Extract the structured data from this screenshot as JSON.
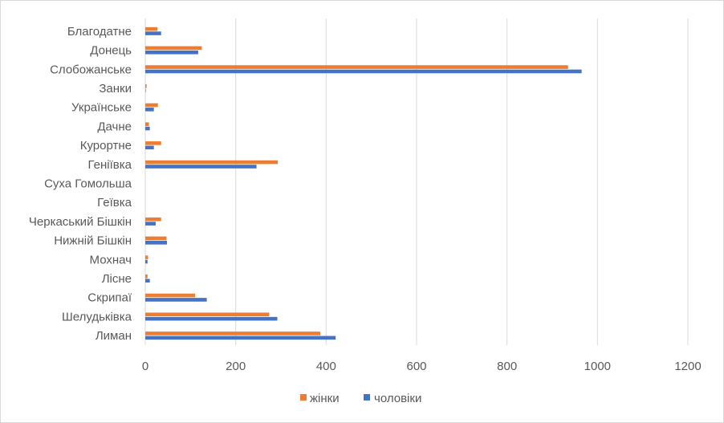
{
  "chart_data": {
    "type": "bar",
    "orientation": "horizontal",
    "categories": [
      "Лиман",
      "Шелудьківка",
      "Скрипаї",
      "Лісне",
      "Мохнач",
      "Нижній Бішкін",
      "Черкаський Бішкін",
      "Геївка",
      "Суха Гомольша",
      "Геніївка",
      "Курортне",
      "Дачне",
      "Українське",
      "Занки",
      "Слобожанське",
      "Донець",
      "Благодатне"
    ],
    "series": [
      {
        "name": "жінки",
        "color": "#ED7D31",
        "values": [
          387,
          274,
          110,
          5,
          6,
          47,
          35,
          0,
          0,
          293,
          35,
          8,
          28,
          3,
          935,
          125,
          27
        ]
      },
      {
        "name": "чоловіки",
        "color": "#4472C4",
        "values": [
          421,
          292,
          136,
          10,
          5,
          48,
          23,
          0,
          0,
          246,
          19,
          10,
          19,
          1,
          965,
          117,
          35
        ]
      }
    ],
    "xlim": [
      0,
      1200
    ],
    "xticks": [
      0,
      200,
      400,
      600,
      800,
      1000,
      1200
    ],
    "grid": true,
    "legend": "bottom"
  }
}
